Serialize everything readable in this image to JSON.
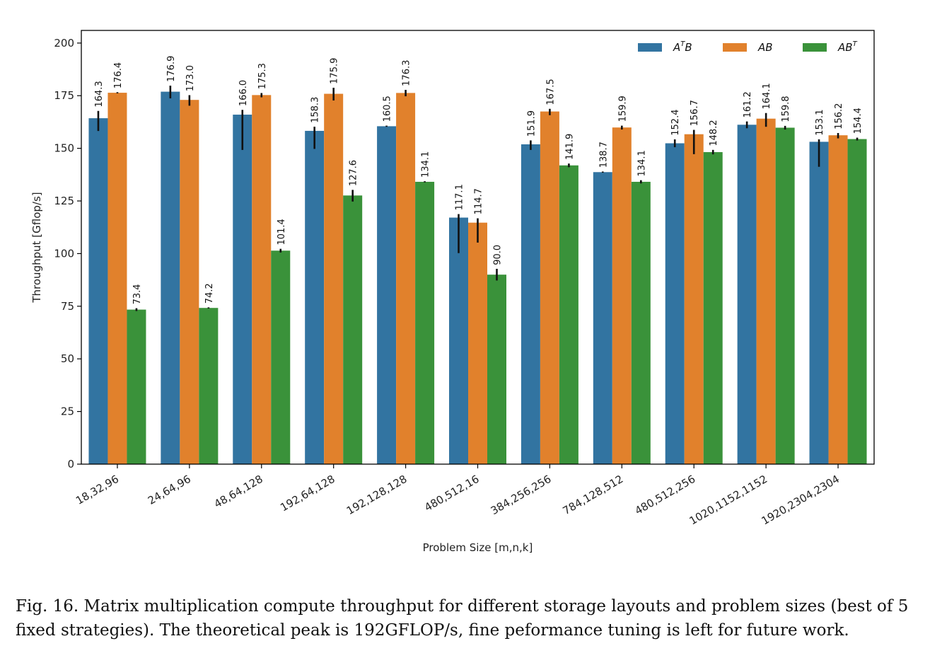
{
  "chart_data": {
    "type": "bar",
    "xlabel": "Problem Size [m,n,k]",
    "ylabel": "Throughput [Gflop/s]",
    "ylim": [
      0,
      206
    ],
    "yticks": [
      0,
      25,
      50,
      75,
      100,
      125,
      150,
      175,
      200
    ],
    "grid": false,
    "legend_position": "top-right",
    "categories": [
      "18,32,96",
      "24,64,96",
      "48,64,128",
      "192,64,128",
      "192,128,128",
      "480,512,16",
      "384,256,256",
      "784,128,512",
      "480,512,256",
      "1020,1152,1152",
      "1920,2304,2304"
    ],
    "series": [
      {
        "name": "A^T B",
        "legend_main": "A",
        "legend_sup": "T",
        "legend_tail": "B",
        "color": "#3274a1",
        "values": [
          164.3,
          176.9,
          166.0,
          158.3,
          160.5,
          117.1,
          151.9,
          138.7,
          152.4,
          161.2,
          153.1
        ],
        "labels": [
          "164.3",
          "176.9",
          "166.0",
          "158.3",
          "160.5",
          "117.1",
          "151.9",
          "138.7",
          "152.4",
          "161.2",
          "153.1"
        ],
        "err_low": [
          158.5,
          174.0,
          149.5,
          150.0,
          160.5,
          100.5,
          149.5,
          138.7,
          150.8,
          159.8,
          141.5
        ],
        "err_high": [
          167.5,
          179.5,
          168.0,
          160.0,
          160.5,
          118.5,
          153.5,
          138.7,
          154.0,
          162.5,
          154.0
        ]
      },
      {
        "name": "AB",
        "legend_main": "AB",
        "legend_sup": "",
        "legend_tail": "",
        "color": "#e1812c",
        "values": [
          176.4,
          173.0,
          175.3,
          175.9,
          176.3,
          114.7,
          167.5,
          159.9,
          156.7,
          164.1,
          156.2
        ],
        "labels": [
          "176.4",
          "173.0",
          "175.3",
          "175.9",
          "176.3",
          "114.7",
          "167.5",
          "159.9",
          "156.7",
          "164.1",
          "156.2"
        ],
        "err_low": [
          176.4,
          170.5,
          174.5,
          173.0,
          175.0,
          105.5,
          166.0,
          159.2,
          147.5,
          160.5,
          155.0
        ],
        "err_high": [
          176.4,
          175.0,
          176.0,
          178.5,
          177.5,
          116.5,
          168.5,
          160.5,
          158.5,
          166.5,
          157.0
        ]
      },
      {
        "name": "AB^T",
        "legend_main": "AB",
        "legend_sup": "T",
        "legend_tail": "",
        "color": "#3a923a",
        "values": [
          73.4,
          74.2,
          101.4,
          127.6,
          134.1,
          90.0,
          141.9,
          134.1,
          148.2,
          159.8,
          154.4
        ],
        "labels": [
          "73.4",
          "74.2",
          "101.4",
          "127.6",
          "134.1",
          "90.0",
          "141.9",
          "134.1",
          "148.2",
          "159.8",
          "154.4"
        ],
        "err_low": [
          73.0,
          74.2,
          100.8,
          125.0,
          134.1,
          87.5,
          141.3,
          133.6,
          147.4,
          159.2,
          154.0
        ],
        "err_high": [
          73.8,
          74.2,
          102.0,
          130.0,
          134.1,
          92.5,
          142.5,
          134.6,
          149.0,
          160.4,
          154.8
        ]
      }
    ]
  },
  "caption": "Fig. 16.  Matrix multiplication compute throughput for different storage layouts and problem sizes (best of 5 fixed strategies). The theoretical peak is 192GFLOP/s, fine peformance tuning is left for future work."
}
